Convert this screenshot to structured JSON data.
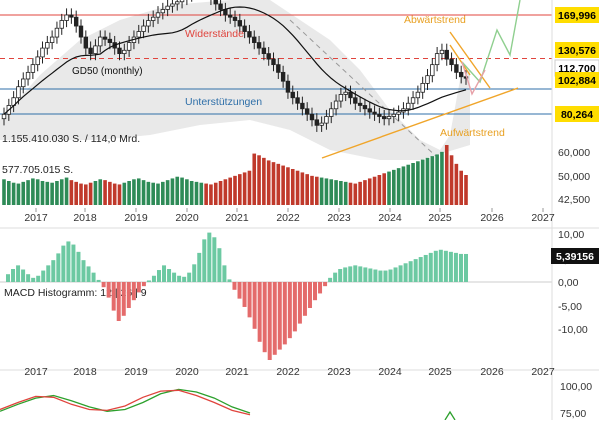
{
  "chart_data": [
    {
      "type": "candlestick",
      "title": "",
      "x_tick_labels": [
        "2017",
        "2018",
        "2019",
        "2020",
        "2021",
        "2022",
        "2023",
        "2024",
        "2025",
        "2026",
        "2027"
      ],
      "y_tick_labels": [
        "60,000",
        "50,000",
        "42,500"
      ],
      "price_tags": [
        {
          "label": "169,996",
          "color": "#ffdd00"
        },
        {
          "label": "130,576",
          "color": "#ffdd00"
        },
        {
          "label": "112,700",
          "color": "#ffffff"
        },
        {
          "label": "102,884",
          "color": "#ffdd00"
        },
        {
          "label": "80,264",
          "color": "#ffdd00"
        }
      ],
      "annotations": [
        "Widerstände",
        "Unterstützungen",
        "Abwärtstrend",
        "Aufwärtstrend",
        "GD50 (monthly)"
      ],
      "lines": [
        {
          "name": "Widerstand 169,996",
          "value": 169.996,
          "color": "#e0443d",
          "style": "solid"
        },
        {
          "name": "Widerstand 130,576",
          "value": 130.576,
          "color": "#e0443d",
          "style": "dashed"
        },
        {
          "name": "Unterstützung 102,884",
          "value": 102.884,
          "color": "#2f6fa8",
          "style": "solid"
        },
        {
          "name": "Unterstützung 80,264",
          "value": 80.264,
          "color": "#2f6fa8",
          "style": "solid"
        }
      ],
      "closes": [
        80,
        88,
        95,
        105,
        112,
        118,
        125,
        132,
        140,
        145,
        150,
        158,
        165,
        170,
        168,
        160,
        150,
        140,
        135,
        142,
        150,
        148,
        145,
        140,
        135,
        138,
        145,
        150,
        155,
        160,
        165,
        168,
        172,
        175,
        178,
        180,
        182,
        185,
        188,
        190,
        192,
        195,
        190,
        185,
        180,
        175,
        170,
        168,
        165,
        160,
        155,
        150,
        145,
        140,
        135,
        130,
        125,
        118,
        110,
        100,
        95,
        90,
        85,
        80,
        75,
        70,
        72,
        78,
        85,
        92,
        98,
        100,
        95,
        90,
        88,
        85,
        82,
        80,
        78,
        76,
        78,
        80,
        82,
        85,
        90,
        95,
        100,
        108,
        115,
        125,
        135,
        138,
        130,
        125,
        118,
        114,
        112.7
      ],
      "volume": {
        "label_top": "1.155.410.030 S. / 114,0 Mrd.",
        "label_bottom": "577.705.015 S.",
        "bars": [
          30,
          28,
          26,
          25,
          27,
          29,
          31,
          30,
          28,
          27,
          26,
          28,
          30,
          32,
          29,
          27,
          25,
          24,
          26,
          28,
          30,
          29,
          27,
          25,
          24,
          26,
          28,
          30,
          31,
          29,
          27,
          26,
          25,
          27,
          29,
          31,
          33,
          32,
          30,
          28,
          27,
          26,
          25,
          24,
          26,
          28,
          30,
          32,
          34,
          36,
          38,
          40,
          60,
          58,
          55,
          52,
          50,
          48,
          46,
          44,
          42,
          40,
          38,
          36,
          34,
          33,
          32,
          31,
          30,
          29,
          28,
          27,
          26,
          25,
          27,
          29,
          31,
          33,
          35,
          37,
          39,
          41,
          43,
          45,
          47,
          49,
          51,
          53,
          55,
          57,
          59,
          62,
          70,
          58,
          48,
          40,
          35
        ]
      }
    },
    {
      "type": "bar",
      "title": "MACD Histogramm: 12 | 26 | 9",
      "x_tick_labels": [
        "2017",
        "2018",
        "2019",
        "2020",
        "2021",
        "2022",
        "2023",
        "2024",
        "2025",
        "2026",
        "2027"
      ],
      "y_tick_labels": [
        "10,00",
        "5,00",
        "0,00",
        "-5,00",
        "-10,00"
      ],
      "current_value": "5,39156",
      "ylim": [
        -15,
        10
      ],
      "values": [
        1.5,
        2.5,
        3.2,
        2.4,
        1.5,
        0.8,
        1.2,
        2.2,
        3.2,
        4.2,
        5.5,
        7.0,
        7.8,
        7.2,
        5.8,
        4.2,
        3.0,
        1.8,
        0.4,
        -1.0,
        -3.0,
        -5.5,
        -7.5,
        -6.5,
        -5.0,
        -3.5,
        -2.0,
        -0.8,
        0.3,
        1.2,
        2.3,
        3.2,
        2.5,
        1.8,
        1.2,
        1.0,
        1.8,
        3.4,
        5.6,
        8.2,
        9.5,
        8.6,
        6.5,
        3.2,
        0.5,
        -1.5,
        -3.2,
        -4.8,
        -6.8,
        -9.0,
        -11.5,
        -13.5,
        -15.0,
        -14.0,
        -13.0,
        -12.0,
        -10.8,
        -9.5,
        -8.0,
        -6.5,
        -5.0,
        -3.5,
        -2.2,
        -0.8,
        0.8,
        1.8,
        2.5,
        2.8,
        3.0,
        3.2,
        3.0,
        2.8,
        2.6,
        2.4,
        2.2,
        2.2,
        2.4,
        2.8,
        3.2,
        3.6,
        4.0,
        4.4,
        4.8,
        5.2,
        5.6,
        6.0,
        6.2,
        6.0,
        5.8,
        5.6,
        5.4,
        5.39
      ]
    },
    {
      "type": "line",
      "title": "",
      "y_tick_labels": [
        "100,00",
        "75,00"
      ],
      "ylim": [
        60,
        100
      ],
      "series": [
        {
          "color": "#2ca02c",
          "values": [
            70,
            78,
            85,
            88,
            82,
            75,
            70,
            72,
            80,
            90,
            95,
            92,
            85,
            75,
            68
          ]
        },
        {
          "color": "#e0443d",
          "values": [
            72,
            80,
            87,
            86,
            78,
            72,
            71,
            76,
            86,
            93,
            94,
            88,
            80,
            71,
            66
          ]
        }
      ]
    }
  ]
}
